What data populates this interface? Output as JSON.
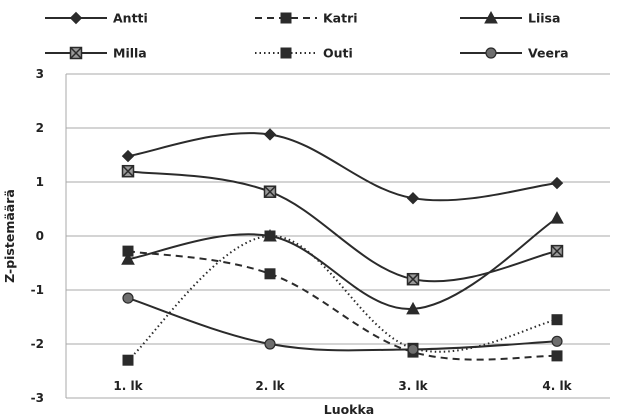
{
  "chart_data": {
    "type": "line",
    "title": "",
    "xlabel": "Luokka",
    "ylabel": "Z-pistemäärä",
    "categories": [
      "1. lk",
      "2. lk",
      "3. lk",
      "4. lk"
    ],
    "ylim": [
      -3,
      3
    ],
    "yticks": [
      -3,
      -2,
      -1,
      0,
      1,
      2,
      3
    ],
    "grid": true,
    "legend_position": "top",
    "series": [
      {
        "name": "Antti",
        "values": [
          1.48,
          1.88,
          0.7,
          0.98
        ],
        "marker": "diamond",
        "dash": "solid"
      },
      {
        "name": "Katri",
        "values": [
          -0.28,
          -0.7,
          -2.15,
          -2.22
        ],
        "marker": "square",
        "dash": "dashed"
      },
      {
        "name": "Liisa",
        "values": [
          -0.43,
          0.0,
          -1.35,
          0.33
        ],
        "marker": "triangle",
        "dash": "solid"
      },
      {
        "name": "Milla",
        "values": [
          1.2,
          0.82,
          -0.8,
          -0.28
        ],
        "marker": "square-x",
        "dash": "solid"
      },
      {
        "name": "Outi",
        "values": [
          -2.3,
          0.0,
          -2.08,
          -1.55
        ],
        "marker": "square",
        "dash": "dotted"
      },
      {
        "name": "Veera",
        "values": [
          -1.15,
          -2.0,
          -2.1,
          -1.95
        ],
        "marker": "circle",
        "dash": "solid"
      }
    ]
  },
  "colors": {
    "line": "#2b2b2b",
    "marker_fill": "#2b2b2b",
    "veera_marker_fill": "#6e6e6e",
    "grid": "#a8a8a8"
  }
}
